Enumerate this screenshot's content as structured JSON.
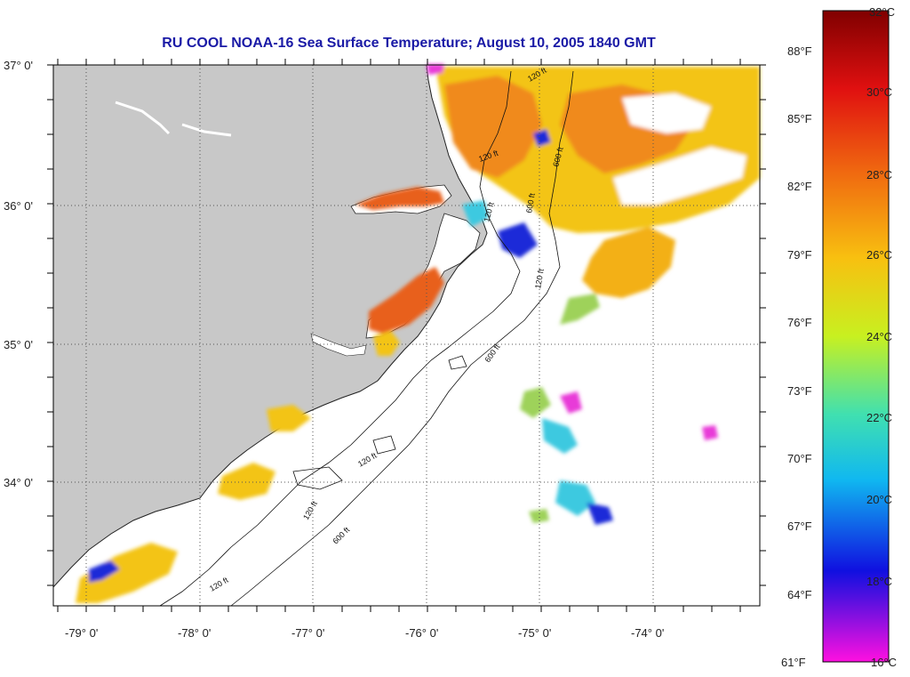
{
  "title": "RU COOL  NOAA-16  Sea Surface Temperature;  August 10, 2005 1840 GMT",
  "lat_labels": [
    "37° 0'",
    "36° 0'",
    "35° 0'",
    "34° 0'"
  ],
  "lon_labels": [
    "-79° 0'",
    "-78° 0'",
    "-77° 0'",
    "-76° 0'",
    "-75° 0'",
    "-74° 0'"
  ],
  "contour_labels": [
    "120 ft",
    "600 ft",
    "120 ft",
    "600 ft",
    "120 ft",
    "600 ft",
    "120 ft",
    "120 ft",
    "600 ft",
    "120 ft",
    "120 ft"
  ],
  "colorbar": {
    "celsius_labels": [
      "32°C",
      "30°C",
      "28°C",
      "26°C",
      "24°C",
      "22°C",
      "20°C",
      "18°C",
      "16°C"
    ],
    "fahrenheit_labels": [
      "88°F",
      "85°F",
      "82°F",
      "79°F",
      "76°F",
      "73°F",
      "70°F",
      "67°F",
      "64°F",
      "61°F"
    ]
  },
  "colors": {
    "land": "#c8c8c8",
    "title": "#1a1aa6",
    "warm": "#f08a1a",
    "hot": "#e8401a",
    "yellow": "#f3c414",
    "green": "#9ed25a",
    "cyan": "#3dc9e0",
    "blue": "#1c2cd8",
    "magenta": "#e83ad8"
  }
}
